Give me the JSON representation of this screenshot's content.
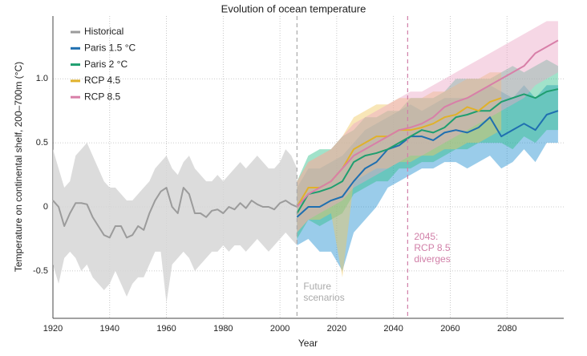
{
  "chart_data": {
    "type": "line",
    "title": "Evolution of ocean temperature",
    "xlabel": "Year",
    "ylabel": "Temperature on continental shelf, 200–700m (°C)",
    "xlim": [
      1920,
      2100
    ],
    "ylim": [
      -0.87,
      1.49
    ],
    "xticks": [
      1920,
      1940,
      1960,
      1980,
      2000,
      2020,
      2040,
      2060,
      2080
    ],
    "yticks": [
      -0.5,
      0,
      0.5,
      {
        "value": 1,
        "label": "1.0"
      }
    ],
    "grid": true,
    "legend": "upper left",
    "series": [
      {
        "name": "Historical",
        "color": "#9b9b9b",
        "band_color": "#d6d6d6",
        "x": [
          1920,
          1922,
          1924,
          1926,
          1928,
          1930,
          1932,
          1934,
          1936,
          1938,
          1940,
          1942,
          1944,
          1946,
          1948,
          1950,
          1952,
          1954,
          1956,
          1958,
          1960,
          1962,
          1964,
          1966,
          1968,
          1970,
          1972,
          1974,
          1976,
          1978,
          1980,
          1982,
          1984,
          1986,
          1988,
          1990,
          1992,
          1994,
          1996,
          1998,
          2000,
          2002,
          2004,
          2006
        ],
        "values": [
          0.05,
          0.0,
          -0.15,
          -0.05,
          0.03,
          0.03,
          0.02,
          -0.08,
          -0.15,
          -0.22,
          -0.24,
          -0.15,
          -0.15,
          -0.24,
          -0.22,
          -0.15,
          -0.18,
          -0.05,
          0.05,
          0.12,
          0.15,
          0.0,
          -0.05,
          0.15,
          0.1,
          -0.05,
          -0.05,
          -0.08,
          -0.03,
          -0.02,
          -0.05,
          0.0,
          -0.02,
          0.03,
          -0.01,
          0.05,
          0.02,
          0.0,
          0.0,
          -0.02,
          0.03,
          0.05,
          0.02,
          0.0
        ],
        "upper": [
          0.45,
          0.3,
          0.15,
          0.2,
          0.4,
          0.45,
          0.5,
          0.4,
          0.3,
          0.2,
          0.15,
          0.15,
          0.1,
          0.05,
          0.05,
          0.1,
          0.15,
          0.2,
          0.3,
          0.35,
          0.4,
          0.3,
          0.25,
          0.35,
          0.4,
          0.3,
          0.25,
          0.2,
          0.2,
          0.25,
          0.2,
          0.25,
          0.3,
          0.35,
          0.3,
          0.35,
          0.4,
          0.35,
          0.3,
          0.3,
          0.35,
          0.45,
          0.4,
          0.3
        ],
        "lower": [
          -0.45,
          -0.6,
          -0.4,
          -0.35,
          -0.4,
          -0.5,
          -0.45,
          -0.55,
          -0.6,
          -0.65,
          -0.6,
          -0.5,
          -0.6,
          -0.7,
          -0.6,
          -0.55,
          -0.55,
          -0.45,
          -0.35,
          -0.35,
          -0.75,
          -0.45,
          -0.4,
          -0.35,
          -0.4,
          -0.5,
          -0.45,
          -0.4,
          -0.35,
          -0.35,
          -0.3,
          -0.35,
          -0.3,
          -0.3,
          -0.35,
          -0.3,
          -0.25,
          -0.3,
          -0.35,
          -0.3,
          -0.25,
          -0.2,
          -0.25,
          -0.3
        ]
      },
      {
        "name": "Paris 1.5 °C",
        "color": "#1f6fb0",
        "band_color": "#1f8fd0",
        "x": [
          2006,
          2010,
          2014,
          2018,
          2022,
          2026,
          2030,
          2034,
          2038,
          2042,
          2046,
          2050,
          2054,
          2058,
          2062,
          2066,
          2070,
          2074,
          2078,
          2082,
          2086,
          2090,
          2094,
          2098
        ],
        "values": [
          -0.08,
          0.0,
          0.0,
          0.05,
          0.08,
          0.2,
          0.3,
          0.35,
          0.45,
          0.48,
          0.55,
          0.55,
          0.52,
          0.58,
          0.6,
          0.58,
          0.62,
          0.7,
          0.55,
          0.6,
          0.65,
          0.6,
          0.72,
          0.75
        ],
        "upper": [
          0.15,
          0.3,
          0.3,
          0.35,
          0.4,
          0.5,
          0.6,
          0.65,
          0.7,
          0.75,
          0.8,
          0.75,
          0.8,
          0.85,
          0.85,
          0.85,
          0.9,
          0.95,
          0.9,
          0.85,
          0.95,
          0.85,
          0.95,
          0.95
        ],
        "lower": [
          -0.3,
          -0.25,
          -0.35,
          -0.35,
          -0.5,
          -0.2,
          -0.1,
          0.0,
          0.15,
          0.2,
          0.25,
          0.3,
          0.3,
          0.35,
          0.35,
          0.3,
          0.35,
          0.4,
          0.3,
          0.35,
          0.45,
          0.35,
          0.5,
          0.5
        ]
      },
      {
        "name": "Paris 2 °C",
        "color": "#1e9e6f",
        "band_color": "#2fbf8a",
        "x": [
          2006,
          2010,
          2014,
          2018,
          2022,
          2026,
          2030,
          2034,
          2038,
          2042,
          2046,
          2050,
          2054,
          2058,
          2062,
          2066,
          2070,
          2074,
          2078,
          2082,
          2086,
          2090,
          2094,
          2098
        ],
        "values": [
          -0.05,
          0.1,
          0.12,
          0.15,
          0.2,
          0.35,
          0.4,
          0.42,
          0.45,
          0.5,
          0.55,
          0.6,
          0.58,
          0.62,
          0.7,
          0.72,
          0.75,
          0.75,
          0.82,
          0.85,
          0.88,
          0.85,
          0.9,
          0.92
        ],
        "upper": [
          0.2,
          0.4,
          0.45,
          0.45,
          0.55,
          0.6,
          0.7,
          0.7,
          0.75,
          0.75,
          0.85,
          0.85,
          0.85,
          0.9,
          1.0,
          1.0,
          1.0,
          1.0,
          1.05,
          1.1,
          1.05,
          1.1,
          1.15,
          1.1
        ],
        "lower": [
          -0.25,
          -0.1,
          -0.15,
          -0.1,
          -0.05,
          0.1,
          0.15,
          0.2,
          0.2,
          0.3,
          0.3,
          0.35,
          0.35,
          0.4,
          0.45,
          0.45,
          0.5,
          0.5,
          0.5,
          0.45,
          0.55,
          0.5,
          0.6,
          0.6
        ]
      },
      {
        "name": "RCP 4.5",
        "color": "#e0b12a",
        "band_color": "#f0c860",
        "x": [
          2006,
          2010,
          2014,
          2018,
          2022,
          2026,
          2030,
          2034,
          2038,
          2042,
          2046,
          2050,
          2054,
          2058,
          2062,
          2066,
          2070,
          2074,
          2078
        ],
        "values": [
          0.0,
          0.15,
          0.15,
          0.2,
          0.3,
          0.45,
          0.5,
          0.55,
          0.55,
          0.6,
          0.6,
          0.62,
          0.65,
          0.7,
          0.72,
          0.78,
          0.75,
          0.82,
          0.85
        ],
        "upper": [
          0.2,
          0.35,
          0.4,
          0.45,
          0.55,
          0.7,
          0.75,
          0.8,
          0.8,
          0.85,
          0.85,
          0.85,
          0.9,
          0.9,
          0.95,
          1.0,
          1.0,
          1.05,
          1.05
        ],
        "lower": [
          -0.2,
          -0.1,
          -0.1,
          -0.05,
          -0.55,
          0.2,
          0.25,
          0.3,
          0.3,
          0.35,
          0.35,
          0.4,
          0.4,
          0.45,
          0.45,
          0.5,
          0.5,
          0.55,
          0.6
        ]
      },
      {
        "name": "RCP 8.5",
        "color": "#d87fa8",
        "band_color": "#eaa6c6",
        "x": [
          2006,
          2010,
          2014,
          2018,
          2022,
          2026,
          2030,
          2034,
          2038,
          2042,
          2046,
          2050,
          2054,
          2058,
          2062,
          2066,
          2070,
          2074,
          2078,
          2082,
          2086,
          2090,
          2094,
          2098
        ],
        "values": [
          0.0,
          0.1,
          0.15,
          0.2,
          0.3,
          0.4,
          0.45,
          0.5,
          0.55,
          0.6,
          0.62,
          0.65,
          0.7,
          0.78,
          0.82,
          0.85,
          0.9,
          0.95,
          1.0,
          1.05,
          1.1,
          1.2,
          1.25,
          1.3
        ],
        "upper": [
          0.2,
          0.35,
          0.4,
          0.45,
          0.55,
          0.65,
          0.7,
          0.75,
          0.8,
          0.85,
          0.9,
          0.9,
          0.95,
          1.0,
          1.05,
          1.1,
          1.15,
          1.2,
          1.25,
          1.3,
          1.35,
          1.4,
          1.45,
          1.45
        ],
        "lower": [
          -0.2,
          -0.1,
          -0.05,
          0.0,
          0.05,
          0.15,
          0.2,
          0.25,
          0.3,
          0.35,
          0.4,
          0.4,
          0.45,
          0.5,
          0.55,
          0.6,
          0.65,
          0.7,
          0.75,
          0.8,
          0.85,
          0.95,
          1.0,
          1.05
        ]
      }
    ],
    "annotations": [
      {
        "x": 2006,
        "color": "#aaaaaa",
        "lines": [
          "Future",
          "scenarios"
        ]
      },
      {
        "x": 2045,
        "color": "#d17fa8",
        "lines": [
          "2045:",
          "RCP 8.5",
          "diverges"
        ]
      }
    ]
  }
}
